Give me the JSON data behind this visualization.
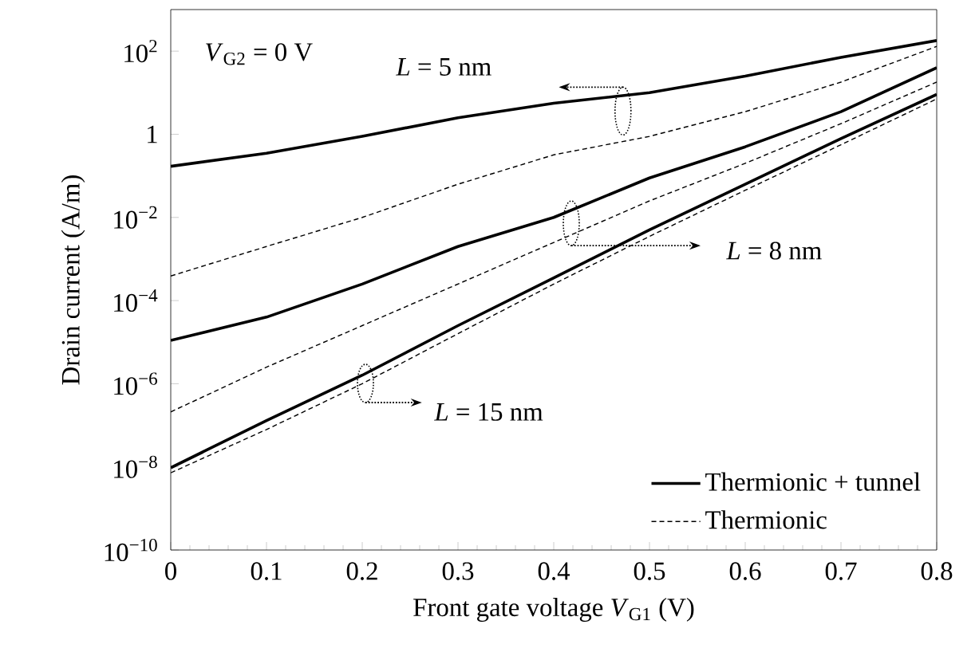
{
  "chart_data": {
    "type": "line",
    "xlabel": "Front gate voltage *V*$_{G1}$ (V)",
    "ylabel": "Drain current (A/m)",
    "log": "y",
    "xlim": [
      0,
      0.8
    ],
    "xticks": [
      0,
      0.1,
      0.2,
      0.3,
      0.4,
      0.5,
      0.6,
      0.7,
      0.8
    ],
    "ylim": [
      1e-10,
      1000
    ],
    "yticks": [
      {
        "value": 1e-10,
        "label": "10$^{−10}$"
      },
      {
        "value": 1e-08,
        "label": "10$^{−8}$"
      },
      {
        "value": 1e-06,
        "label": "10$^{−6}$"
      },
      {
        "value": 0.0001,
        "label": "10$^{−4}$"
      },
      {
        "value": 0.01,
        "label": "10$^{−2}$"
      },
      1,
      {
        "value": 100,
        "label": "10$^{2}$"
      }
    ],
    "legend": "bottom right",
    "marker": "none",
    "annotations": [
      "*L* = 5 nm",
      "*L* = 8 nm",
      "*L* = 15 nm",
      "*V*$_{G2}$ = 0 V"
    ],
    "series": [
      {
        "name": "Thermionic + tunnel",
        "color": "#000000",
        "line_style": "solid",
        "x": [
          0,
          0.1,
          0.2,
          0.3,
          0.4,
          0.5,
          0.6,
          0.7,
          0.8
        ],
        "values": [
          0.17,
          0.35,
          0.89,
          2.5,
          5.6,
          10,
          25,
          71,
          180
        ]
      },
      {
        "name": "Thermionic",
        "color": "#000000",
        "line_style": "dashed",
        "x": [
          0,
          0.1,
          0.2,
          0.3,
          0.4,
          0.5,
          0.6,
          0.7,
          0.8
        ],
        "values": [
          0.00039,
          0.002,
          0.01,
          0.063,
          0.32,
          0.89,
          3.5,
          18,
          130
        ]
      },
      {
        "color": "#000000",
        "line_style": "solid",
        "x": [
          0,
          0.1,
          0.2,
          0.3,
          0.4,
          0.5,
          0.6,
          0.7,
          0.8
        ],
        "values": [
          1.1e-05,
          4e-05,
          0.00025,
          0.002,
          0.01,
          0.089,
          0.5,
          3.5,
          40
        ]
      },
      {
        "color": "#000000",
        "line_style": "dashed",
        "x": [
          0,
          0.1,
          0.2,
          0.3,
          0.4,
          0.5,
          0.6,
          0.7,
          0.8
        ],
        "values": [
          2.1e-07,
          2.5e-06,
          2.5e-05,
          0.00025,
          0.0025,
          0.025,
          0.2,
          1.8,
          18
        ]
      },
      {
        "color": "#000000",
        "line_style": "solid",
        "x": [
          0,
          0.1,
          0.2,
          0.3,
          0.4,
          0.5,
          0.6,
          0.7,
          0.8
        ],
        "values": [
          9.5e-09,
          1.3e-07,
          1.6e-06,
          2.5e-05,
          0.00035,
          0.005,
          0.063,
          0.79,
          9.1
        ]
      },
      {
        "color": "#000000",
        "line_style": "dashed",
        "x": [
          0,
          0.1,
          0.2,
          0.3,
          0.4,
          0.5,
          0.6,
          0.7,
          0.8
        ],
        "values": [
          7.2e-09,
          7.9e-08,
          1e-06,
          1.6e-05,
          0.00025,
          0.0035,
          0.045,
          0.56,
          7.1
        ]
      }
    ]
  }
}
